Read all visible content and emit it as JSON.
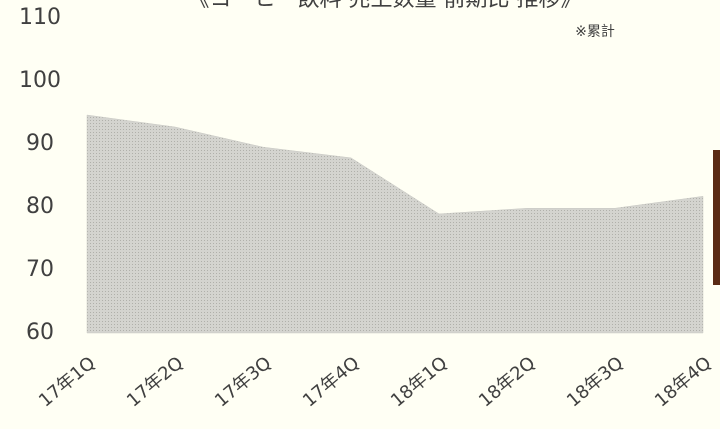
{
  "chart_data": {
    "type": "area",
    "title": "《コーヒー飲料 売上数量 前期比 推移》",
    "annotation": "※累計",
    "categories": [
      "17年1Q",
      "17年2Q",
      "17年3Q",
      "17年4Q",
      "18年1Q",
      "18年2Q",
      "18年3Q",
      "18年4Q"
    ],
    "values": [
      94.6,
      92.7,
      89.5,
      87.8,
      78.9,
      79.8,
      79.8,
      81.7
    ],
    "color": "#c9c9c4",
    "ylim": [
      60,
      110
    ],
    "yticks": [
      60,
      70,
      80,
      90,
      100,
      110
    ]
  }
}
